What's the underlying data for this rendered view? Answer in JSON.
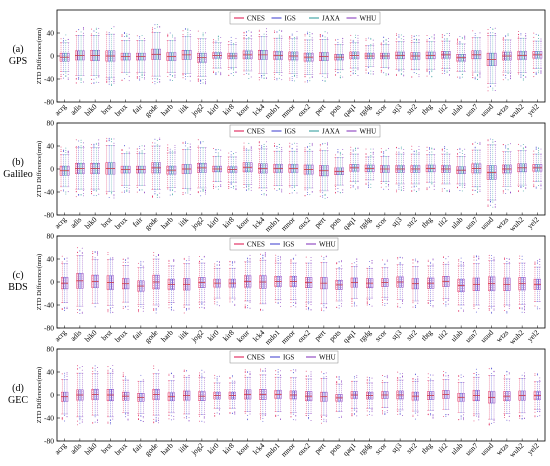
{
  "figure": {
    "stations": [
      "acrg",
      "adis",
      "bik0",
      "brst",
      "brux",
      "fair",
      "gode",
      "harb",
      "iitk",
      "jog2",
      "kir0",
      "kir8",
      "kour",
      "lck4",
      "mdo1",
      "mnor",
      "ous2",
      "pert",
      "pots",
      "qaq1",
      "rgdg",
      "scor",
      "stj3",
      "str2",
      "tbtg",
      "tit2",
      "ulab",
      "usn7",
      "usud",
      "wtzs",
      "wuh2",
      "yel2"
    ],
    "ylabel": "ZTD Difference(mm)",
    "yticks": [
      "-80",
      "-40",
      "0",
      "40",
      "80"
    ],
    "yticks_top": [
      "-80",
      "-40",
      "0",
      "40"
    ],
    "ylim": [
      -80,
      80
    ]
  },
  "panels": [
    {
      "label": "(a)",
      "sublabel": "GPS"
    },
    {
      "label": "(b)",
      "sublabel": "Galileo"
    },
    {
      "label": "(c)",
      "sublabel": "BDS"
    },
    {
      "label": "(d)",
      "sublabel": "GEC"
    }
  ],
  "colors": {
    "CNES": "#e0245a",
    "IGS": "#4a4ad0",
    "JAXA": "#3aa0a0",
    "WHU": "#8a3fc0",
    "median": "#cc1a1a",
    "axis": "#000000"
  },
  "chart_data": [
    {
      "type": "box",
      "title": "",
      "panel": "(a) GPS",
      "ylabel": "ZTD Difference(mm)",
      "ylim": [
        -80,
        80
      ],
      "legend": [
        "CNES",
        "IGS",
        "JAXA",
        "WHU"
      ],
      "legend_position": "top-center",
      "categories": [
        "acrg",
        "adis",
        "bik0",
        "brst",
        "brux",
        "fair",
        "gode",
        "harb",
        "iitk",
        "jog2",
        "kir0",
        "kir8",
        "kour",
        "lck4",
        "mdo1",
        "mnor",
        "ous2",
        "pert",
        "pots",
        "qaq1",
        "rgdg",
        "scor",
        "stj3",
        "str2",
        "tbtg",
        "tit2",
        "ulab",
        "usn7",
        "usud",
        "wtzs",
        "wuh2",
        "yel2"
      ],
      "medians": [
        -2,
        1,
        1,
        0,
        -1,
        -1,
        3,
        -1,
        2,
        -3,
        1,
        0,
        2,
        2,
        1,
        0,
        -2,
        -1,
        -2,
        1,
        0,
        0,
        1,
        0,
        1,
        2,
        -3,
        2,
        -6,
        0,
        1,
        2
      ],
      "q_spread": [
        7,
        8,
        9,
        9,
        6,
        6,
        9,
        7,
        8,
        8,
        5,
        5,
        7,
        8,
        7,
        7,
        7,
        7,
        5,
        6,
        5,
        5,
        6,
        6,
        6,
        6,
        6,
        7,
        11,
        7,
        7,
        6
      ],
      "whisker_spread": [
        25,
        35,
        35,
        38,
        28,
        28,
        38,
        28,
        32,
        33,
        22,
        20,
        28,
        32,
        30,
        30,
        30,
        30,
        22,
        22,
        18,
        20,
        24,
        24,
        24,
        24,
        24,
        30,
        42,
        28,
        30,
        24
      ]
    },
    {
      "type": "box",
      "title": "",
      "panel": "(b) Galileo",
      "ylabel": "ZTD Difference(mm)",
      "ylim": [
        -80,
        80
      ],
      "legend": [
        "CNES",
        "IGS",
        "JAXA",
        "WHU"
      ],
      "legend_position": "top-center",
      "categories": [
        "acrg",
        "adis",
        "bik0",
        "brst",
        "brux",
        "fair",
        "gode",
        "harb",
        "iitk",
        "jog2",
        "kir0",
        "kir8",
        "kour",
        "lck4",
        "mdo1",
        "mnor",
        "ous2",
        "pert",
        "pots",
        "qaq1",
        "rgdg",
        "scor",
        "stj3",
        "str2",
        "tbtg",
        "tit2",
        "ulab",
        "usn7",
        "usud",
        "wtzs",
        "wuh2",
        "yel2"
      ],
      "medians": [
        -3,
        1,
        1,
        1,
        -1,
        -1,
        2,
        -2,
        0,
        2,
        0,
        -1,
        3,
        1,
        1,
        1,
        -1,
        -3,
        -4,
        2,
        1,
        0,
        0,
        0,
        1,
        0,
        -2,
        1,
        -6,
        0,
        2,
        2
      ],
      "q_spread": [
        8,
        9,
        9,
        10,
        6,
        6,
        9,
        7,
        8,
        8,
        5,
        5,
        8,
        8,
        7,
        7,
        8,
        9,
        6,
        6,
        6,
        6,
        6,
        6,
        6,
        6,
        6,
        8,
        12,
        7,
        7,
        6
      ],
      "whisker_spread": [
        28,
        36,
        36,
        40,
        28,
        28,
        38,
        30,
        34,
        35,
        22,
        22,
        30,
        34,
        30,
        30,
        32,
        35,
        24,
        24,
        20,
        22,
        26,
        26,
        24,
        26,
        24,
        32,
        48,
        30,
        30,
        24
      ]
    },
    {
      "type": "box",
      "title": "",
      "panel": "(c) BDS",
      "ylabel": "ZTD Difference(mm)",
      "ylim": [
        -80,
        80
      ],
      "legend": [
        "CNES",
        "IGS",
        "WHU"
      ],
      "legend_position": "top-center",
      "categories": [
        "acrg",
        "adis",
        "bik0",
        "brst",
        "brux",
        "fair",
        "gode",
        "harb",
        "iitk",
        "jog2",
        "kir0",
        "kir8",
        "kour",
        "lck4",
        "mdo1",
        "mnor",
        "ous2",
        "pert",
        "pots",
        "qaq1",
        "rgdg",
        "scor",
        "stj3",
        "str2",
        "tbtg",
        "tit2",
        "ulab",
        "usn7",
        "usud",
        "wtzs",
        "wuh2",
        "yel2"
      ],
      "medians": [
        -2,
        2,
        1,
        -1,
        -3,
        -7,
        0,
        -4,
        -4,
        -1,
        -2,
        -2,
        1,
        0,
        1,
        1,
        -1,
        -2,
        -5,
        -1,
        -2,
        -1,
        0,
        -3,
        -2,
        1,
        -6,
        -4,
        -3,
        -4,
        -3,
        -4
      ],
      "q_spread": [
        10,
        13,
        11,
        12,
        9,
        9,
        12,
        9,
        10,
        9,
        7,
        7,
        10,
        11,
        9,
        9,
        9,
        10,
        8,
        8,
        8,
        7,
        9,
        9,
        9,
        9,
        11,
        11,
        12,
        11,
        11,
        9
      ],
      "whisker_spread": [
        34,
        44,
        38,
        40,
        32,
        32,
        40,
        32,
        36,
        34,
        26,
        26,
        34,
        38,
        32,
        32,
        34,
        36,
        28,
        28,
        26,
        26,
        30,
        30,
        30,
        30,
        34,
        36,
        40,
        36,
        36,
        30
      ]
    },
    {
      "type": "box",
      "title": "",
      "panel": "(d) GEC",
      "ylabel": "ZTD Difference(mm)",
      "ylim": [
        -80,
        80
      ],
      "legend": [
        "CNES",
        "IGS",
        "WHU"
      ],
      "legend_position": "top-center",
      "categories": [
        "acrg",
        "adis",
        "bik0",
        "brst",
        "brux",
        "fair",
        "gode",
        "harb",
        "iitk",
        "jog2",
        "kir0",
        "kir8",
        "kour",
        "lck4",
        "mdo1",
        "mnor",
        "ous2",
        "pert",
        "pots",
        "qaq1",
        "rgdg",
        "scor",
        "stj3",
        "str2",
        "tbtg",
        "tit2",
        "ulab",
        "usn7",
        "usud",
        "wtzs",
        "wuh2",
        "yel2"
      ],
      "medians": [
        -3,
        0,
        1,
        0,
        -2,
        -4,
        1,
        -3,
        -1,
        -2,
        -1,
        -1,
        1,
        1,
        1,
        0,
        -2,
        -3,
        -5,
        0,
        -1,
        0,
        0,
        -2,
        -1,
        1,
        -4,
        -1,
        -4,
        -2,
        -1,
        -1
      ],
      "q_spread": [
        8,
        9,
        9,
        10,
        7,
        7,
        9,
        7,
        8,
        8,
        6,
        6,
        8,
        9,
        7,
        7,
        8,
        8,
        6,
        6,
        6,
        6,
        7,
        7,
        7,
        7,
        7,
        9,
        10,
        8,
        8,
        7
      ],
      "whisker_spread": [
        30,
        38,
        36,
        38,
        28,
        28,
        36,
        28,
        32,
        32,
        22,
        22,
        30,
        34,
        30,
        30,
        30,
        32,
        24,
        24,
        22,
        22,
        26,
        26,
        26,
        26,
        26,
        32,
        38,
        30,
        30,
        24
      ]
    }
  ]
}
